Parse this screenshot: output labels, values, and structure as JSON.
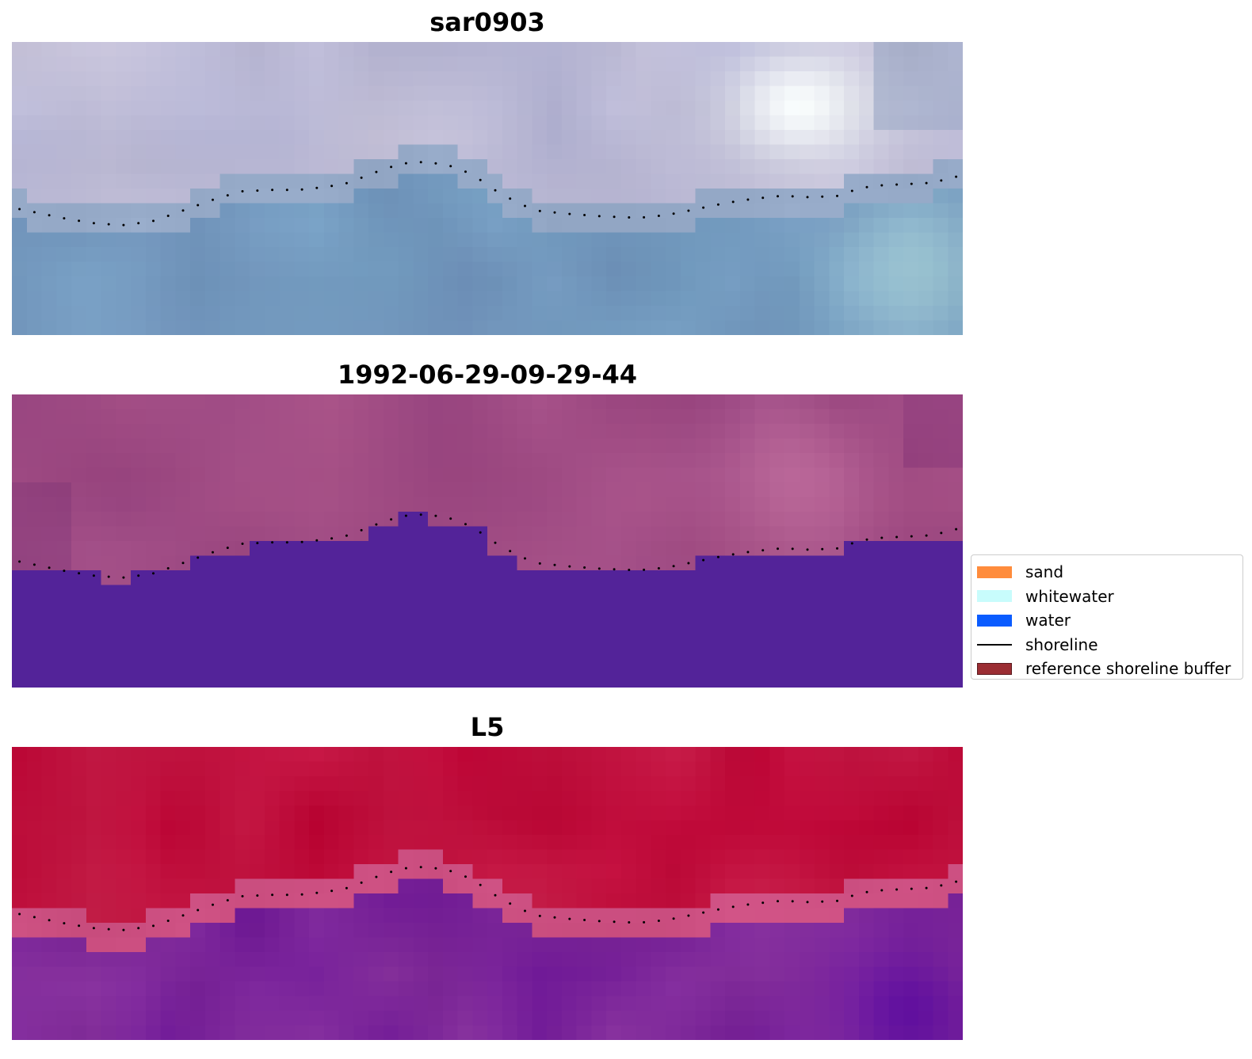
{
  "panels": [
    {
      "title": "sar0903",
      "kind": "sar"
    },
    {
      "title": "1992-06-29-09-29-44",
      "kind": "classified"
    },
    {
      "title": "L5",
      "kind": "index"
    }
  ],
  "shoreline": {
    "color": "#000000",
    "points": [
      [
        0,
        0.565
      ],
      [
        0.03,
        0.585
      ],
      [
        0.06,
        0.605
      ],
      [
        0.09,
        0.62
      ],
      [
        0.12,
        0.625
      ],
      [
        0.15,
        0.61
      ],
      [
        0.18,
        0.575
      ],
      [
        0.21,
        0.54
      ],
      [
        0.24,
        0.51
      ],
      [
        0.27,
        0.505
      ],
      [
        0.3,
        0.505
      ],
      [
        0.33,
        0.495
      ],
      [
        0.355,
        0.48
      ],
      [
        0.37,
        0.46
      ],
      [
        0.39,
        0.435
      ],
      [
        0.41,
        0.415
      ],
      [
        0.43,
        0.41
      ],
      [
        0.45,
        0.415
      ],
      [
        0.47,
        0.43
      ],
      [
        0.49,
        0.465
      ],
      [
        0.51,
        0.51
      ],
      [
        0.53,
        0.545
      ],
      [
        0.55,
        0.575
      ],
      [
        0.58,
        0.585
      ],
      [
        0.62,
        0.595
      ],
      [
        0.66,
        0.6
      ],
      [
        0.69,
        0.59
      ],
      [
        0.72,
        0.57
      ],
      [
        0.75,
        0.55
      ],
      [
        0.78,
        0.535
      ],
      [
        0.81,
        0.525
      ],
      [
        0.84,
        0.53
      ],
      [
        0.87,
        0.525
      ],
      [
        0.89,
        0.5
      ],
      [
        0.91,
        0.49
      ],
      [
        0.94,
        0.485
      ],
      [
        0.97,
        0.48
      ],
      [
        0.985,
        0.465
      ],
      [
        1.0,
        0.455
      ]
    ]
  },
  "legend": {
    "items": [
      {
        "label": "sand",
        "color": "#ff8c3c",
        "type": "patch"
      },
      {
        "label": "whitewater",
        "color": "#c8fcfc",
        "type": "patch"
      },
      {
        "label": "water",
        "color": "#0a5cff",
        "type": "patch"
      },
      {
        "label": "shoreline",
        "color": "#000000",
        "type": "line"
      },
      {
        "label": "reference shoreline buffer",
        "color": "#9b2d33",
        "type": "patch"
      }
    ]
  }
}
